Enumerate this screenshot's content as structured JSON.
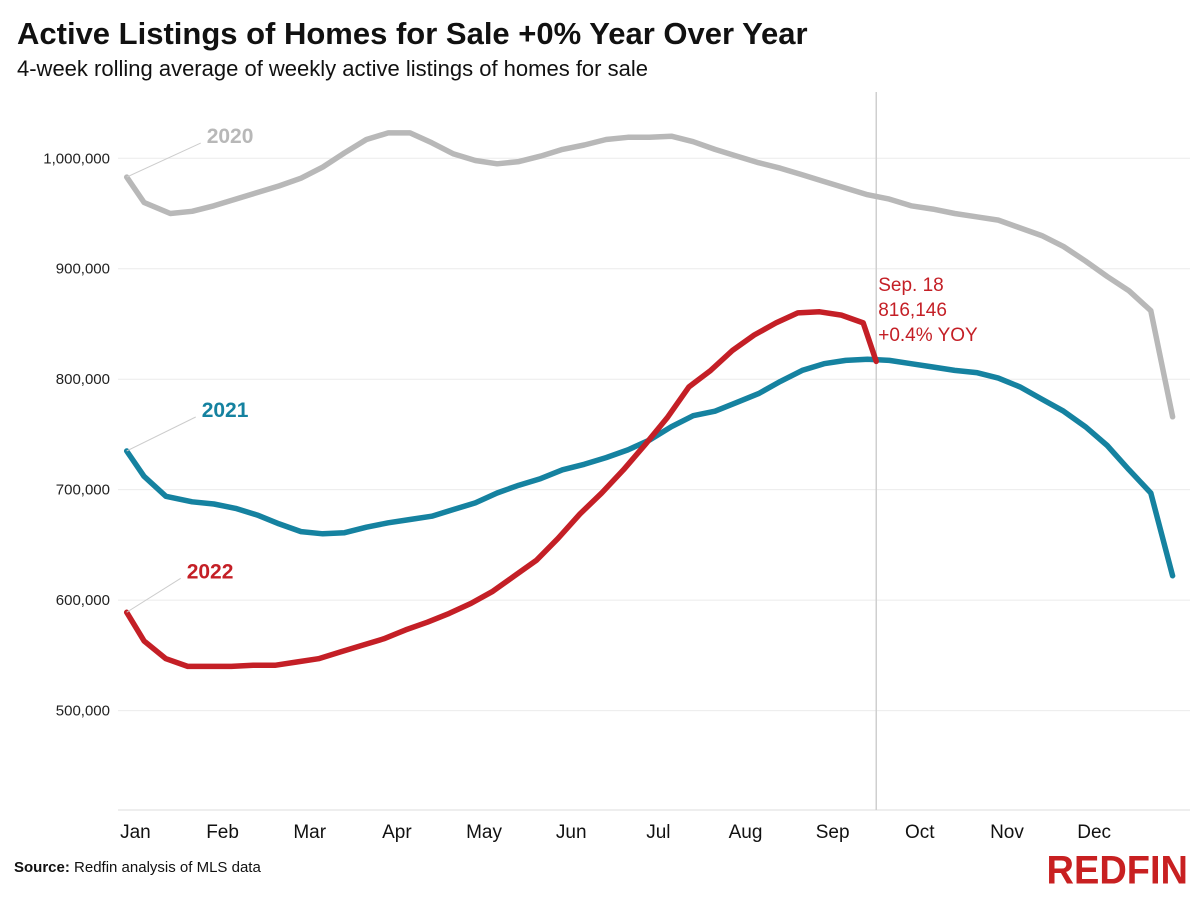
{
  "title": "Active Listings of Homes for Sale +0% Year Over Year",
  "subtitle": "4-week rolling average of weekly active listings of homes for sale",
  "source_label": "Source:",
  "source_text": "Redfin analysis of MLS data",
  "logo_text": "REDFIN",
  "colors": {
    "2020": "#b8b8b8",
    "2021": "#1582a0",
    "2022": "#c41f26",
    "annotation": "#c41f26"
  },
  "chart_data": {
    "type": "line",
    "y_ticks": [
      500000,
      600000,
      700000,
      800000,
      900000,
      1000000
    ],
    "y_tick_labels": [
      "500,000",
      "600,000",
      "700,000",
      "800,000",
      "900,000",
      "1,000,000"
    ],
    "ylim": [
      410000,
      1060000
    ],
    "x_tick_labels": [
      "Jan",
      "Feb",
      "Mar",
      "Apr",
      "May",
      "Jun",
      "Jul",
      "Aug",
      "Sep",
      "Oct",
      "Nov",
      "Dec"
    ],
    "xlim": [
      0,
      12.3
    ],
    "grid": true,
    "series": [
      {
        "name": "2020",
        "x": [
          0.1,
          0.3,
          0.6,
          0.85,
          1.1,
          1.35,
          1.6,
          1.85,
          2.1,
          2.35,
          2.6,
          2.85,
          3.1,
          3.35,
          3.6,
          3.85,
          4.1,
          4.35,
          4.6,
          4.85,
          5.1,
          5.35,
          5.6,
          5.85,
          6.1,
          6.35,
          6.6,
          6.85,
          7.1,
          7.35,
          7.6,
          7.85,
          8.1,
          8.35,
          8.6,
          8.85,
          9.1,
          9.35,
          9.6,
          9.85,
          10.1,
          10.35,
          10.6,
          10.85,
          11.1,
          11.35,
          11.6,
          11.85,
          12.1
        ],
        "y": [
          983000,
          960000,
          950000,
          952000,
          957000,
          963000,
          969000,
          975000,
          982000,
          992000,
          1005000,
          1017000,
          1023000,
          1023000,
          1014000,
          1004000,
          998000,
          995000,
          997000,
          1002000,
          1008000,
          1012000,
          1017000,
          1019000,
          1019000,
          1020000,
          1015000,
          1008000,
          1002000,
          996000,
          991000,
          985000,
          979000,
          973000,
          967000,
          963000,
          957000,
          954000,
          950000,
          947000,
          944000,
          937000,
          930000,
          920000,
          907000,
          893000,
          880000,
          862000,
          766000
        ]
      },
      {
        "name": "2021",
        "x": [
          0.1,
          0.3,
          0.55,
          0.85,
          1.1,
          1.35,
          1.6,
          1.85,
          2.1,
          2.35,
          2.6,
          2.85,
          3.1,
          3.35,
          3.6,
          3.85,
          4.1,
          4.35,
          4.6,
          4.85,
          5.1,
          5.35,
          5.6,
          5.85,
          6.1,
          6.35,
          6.6,
          6.85,
          7.1,
          7.35,
          7.6,
          7.85,
          8.1,
          8.35,
          8.6,
          8.85,
          9.1,
          9.35,
          9.6,
          9.85,
          10.1,
          10.35,
          10.6,
          10.85,
          11.1,
          11.35,
          11.6,
          11.85,
          12.1
        ],
        "y": [
          735000,
          712000,
          694000,
          689000,
          687000,
          683000,
          677000,
          669000,
          662000,
          660000,
          661000,
          666000,
          670000,
          673000,
          676000,
          682000,
          688000,
          697000,
          704000,
          710000,
          718000,
          723000,
          729000,
          736000,
          745000,
          757000,
          767000,
          771000,
          779000,
          787000,
          798000,
          808000,
          814000,
          817000,
          818000,
          817000,
          814000,
          811000,
          808000,
          806000,
          801000,
          793000,
          782000,
          771000,
          757000,
          740000,
          718000,
          697000,
          622000
        ]
      },
      {
        "name": "2022",
        "x": [
          0.1,
          0.3,
          0.55,
          0.8,
          1.05,
          1.3,
          1.55,
          1.8,
          2.05,
          2.3,
          2.55,
          2.8,
          3.05,
          3.3,
          3.55,
          3.8,
          4.05,
          4.3,
          4.55,
          4.8,
          5.05,
          5.3,
          5.55,
          5.8,
          6.05,
          6.3,
          6.55,
          6.8,
          7.05,
          7.3,
          7.55,
          7.8,
          8.05,
          8.3,
          8.55,
          8.7
        ],
        "y": [
          589000,
          563000,
          547000,
          540000,
          540000,
          540000,
          541000,
          541000,
          544000,
          547000,
          553000,
          559000,
          565000,
          573000,
          580000,
          588000,
          597000,
          608000,
          622000,
          636000,
          656000,
          678000,
          697000,
          718000,
          741000,
          765000,
          793000,
          808000,
          826000,
          840000,
          851000,
          860000,
          861000,
          858000,
          851000,
          816146
        ]
      }
    ],
    "annotation": {
      "lines": [
        "Sep. 18",
        "816,146",
        "+0.4% YOY"
      ],
      "x": 8.7
    }
  }
}
